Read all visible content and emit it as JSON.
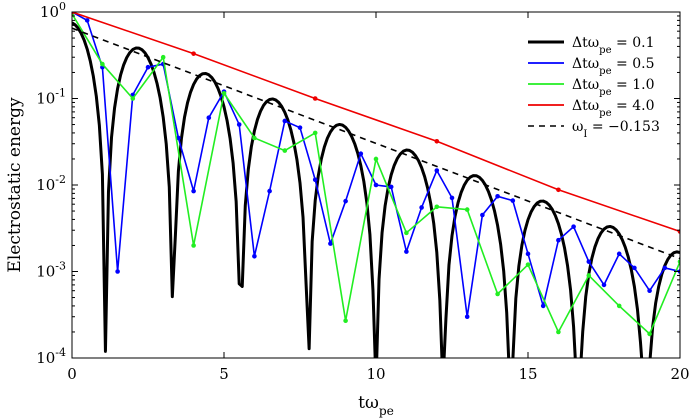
{
  "chart_data": {
    "type": "line",
    "xlabel": "tω_pe",
    "ylabel": "Electrostatic energy",
    "xlim": [
      0,
      20
    ],
    "ylim": [
      0.0001,
      1
    ],
    "yscale": "log",
    "grid": false,
    "legend_position": "top-right",
    "x_ticks": [
      0,
      5,
      10,
      15,
      20
    ],
    "y_ticks": [
      {
        "value": 1,
        "label": "10^0"
      },
      {
        "value": 0.1,
        "label": "10^-1"
      },
      {
        "value": 0.01,
        "label": "10^-2"
      },
      {
        "value": 0.001,
        "label": "10^-3"
      },
      {
        "value": 0.0001,
        "label": "10^-4"
      }
    ],
    "series": [
      {
        "name": "Δtω_pe = 0.1",
        "color": "#000000",
        "style": "solid-thick",
        "formula": {
          "amplitude": 0.75,
          "gamma": 0.153,
          "omega": 1.415,
          "phase": 0.0,
          "floor": 1e-05
        },
        "x_range": [
          0,
          20
        ],
        "dt": 0.1
      },
      {
        "name": "Δtω_pe = 0.5",
        "color": "#0000ff",
        "style": "solid-markers",
        "x": [
          0,
          0.5,
          1,
          1.5,
          2,
          2.5,
          3,
          3.5,
          4,
          4.5,
          5,
          5.5,
          6,
          6.5,
          7,
          7.5,
          8,
          8.5,
          9,
          9.5,
          10,
          10.5,
          11,
          11.5,
          12,
          12.5,
          13,
          13.5,
          14,
          14.5,
          15,
          15.5,
          16,
          16.5,
          17,
          17.5,
          18,
          18.5,
          19,
          19.5,
          20
        ],
        "y": [
          1.0,
          0.8,
          0.23,
          0.001,
          0.11,
          0.23,
          0.25,
          0.035,
          0.0085,
          0.06,
          0.12,
          0.05,
          0.0015,
          0.0085,
          0.055,
          0.046,
          0.0115,
          0.0021,
          0.0065,
          0.023,
          0.01,
          0.0095,
          0.0017,
          0.0055,
          0.0147,
          0.0071,
          0.0003,
          0.0045,
          0.0074,
          0.0066,
          0.0016,
          0.0004,
          0.0023,
          0.0033,
          0.0013,
          0.0007,
          0.0016,
          0.0011,
          0.0006,
          0.0011,
          0.001
        ]
      },
      {
        "name": "Δtω_pe = 1.0",
        "color": "#22ee22",
        "style": "solid-markers",
        "x": [
          0,
          1,
          2,
          3,
          4,
          5,
          6,
          7,
          8,
          9,
          10,
          11,
          12,
          13,
          14,
          15,
          16,
          17,
          18,
          19,
          20
        ],
        "y": [
          0.95,
          0.25,
          0.1,
          0.3,
          0.002,
          0.115,
          0.035,
          0.025,
          0.04,
          0.00027,
          0.02,
          0.0028,
          0.0056,
          0.0052,
          0.00055,
          0.0012,
          0.0002,
          0.0009,
          0.0004,
          0.00019,
          0.0013
        ]
      },
      {
        "name": "Δtω_pe = 4.0",
        "color": "#ee0000",
        "style": "solid-markers",
        "x": [
          0,
          4,
          8,
          12,
          16,
          20
        ],
        "y": [
          1.0,
          0.33,
          0.1,
          0.032,
          0.0088,
          0.0029
        ]
      },
      {
        "name": "ω_I = −0.153",
        "color": "#000000",
        "style": "dashed",
        "x": [
          0,
          20
        ],
        "y": [
          0.65,
          0.00141
        ]
      }
    ]
  }
}
